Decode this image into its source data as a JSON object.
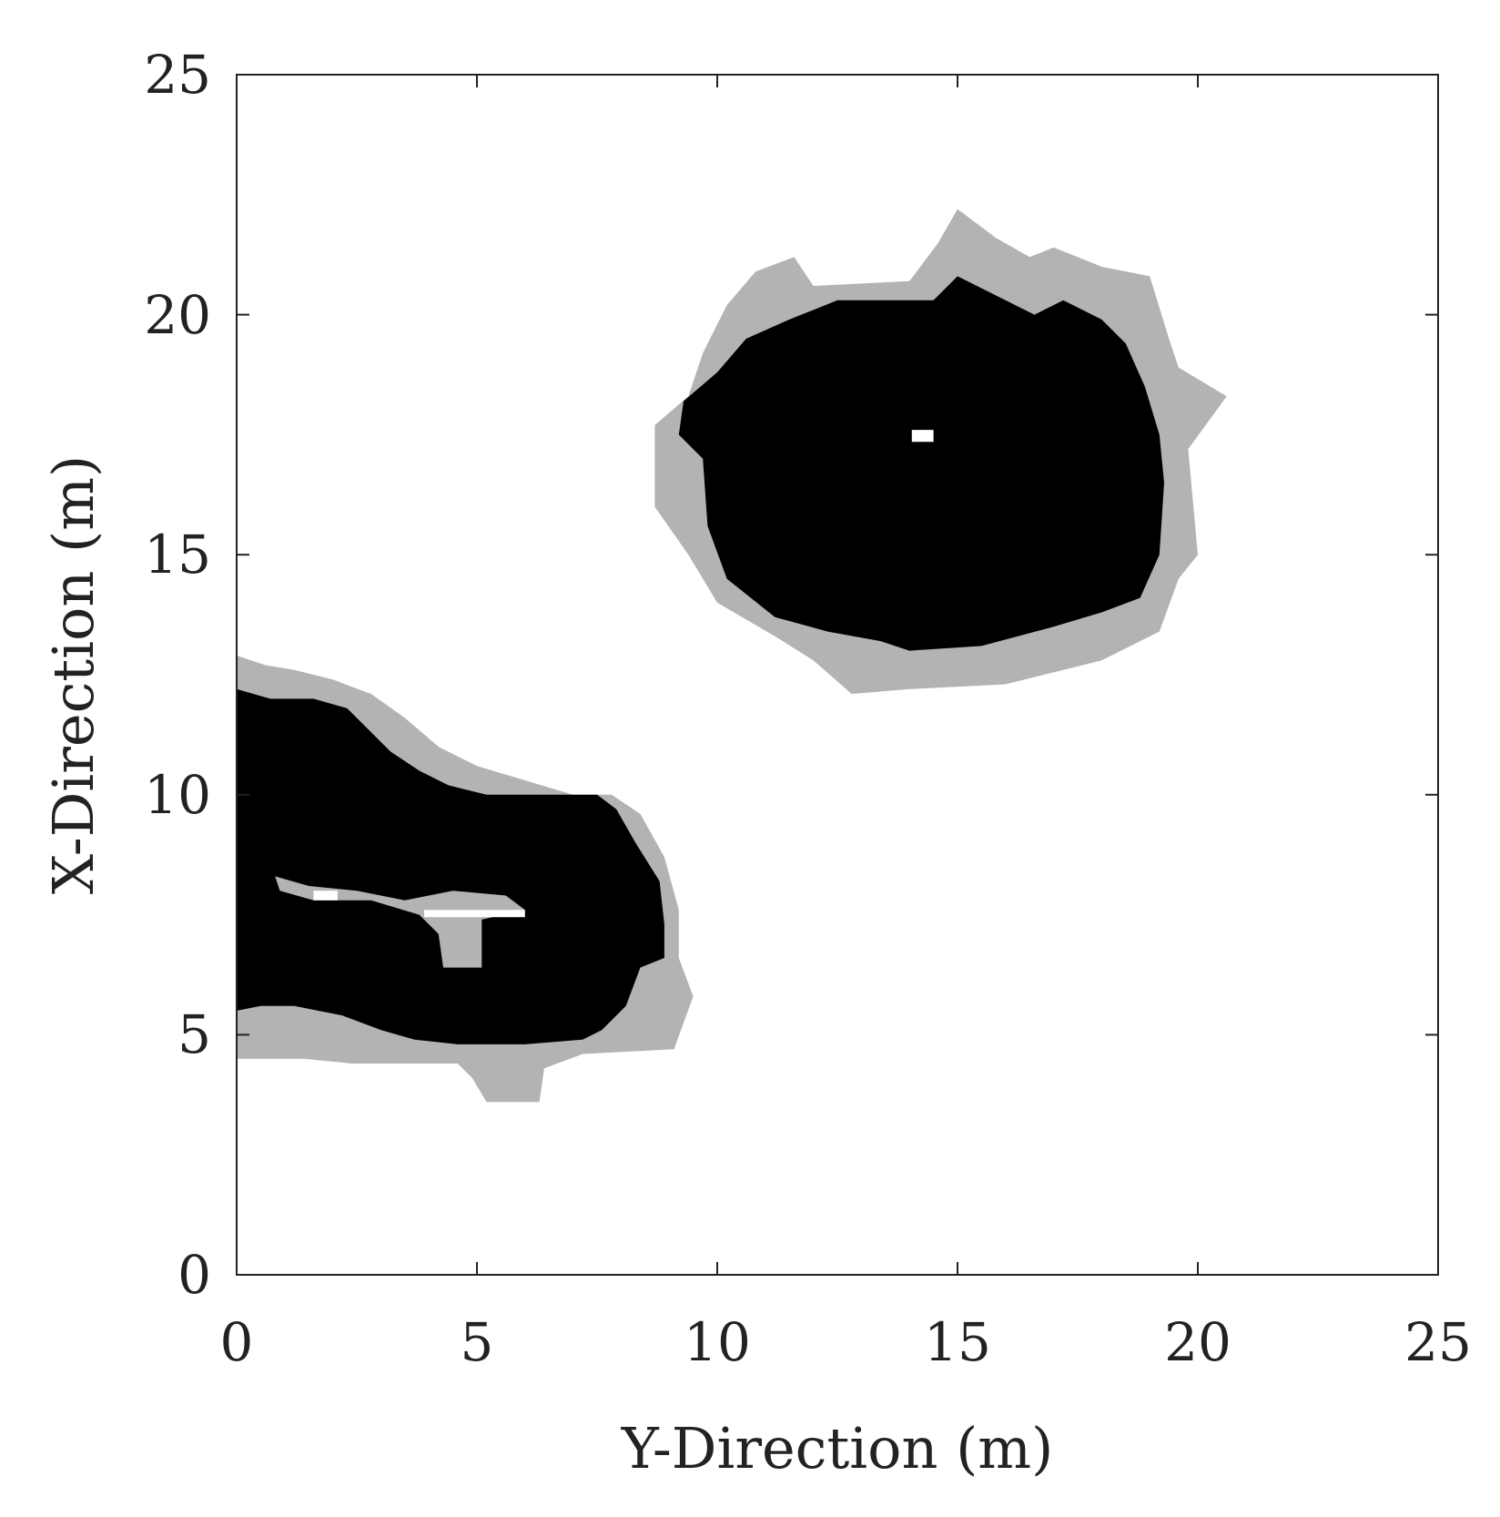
{
  "chart_data": {
    "type": "heatmap",
    "title": "",
    "xlabel": "Y-Direction (m)",
    "ylabel": "X-Direction (m)",
    "xlim": [
      0,
      25
    ],
    "ylim": [
      0,
      25
    ],
    "xticks": [
      0,
      5,
      10,
      15,
      20,
      25
    ],
    "yticks": [
      0,
      5,
      10,
      15,
      20,
      25
    ],
    "xtick_labels": [
      "0",
      "5",
      "10",
      "15",
      "20",
      "25"
    ],
    "ytick_labels": [
      "0",
      "5",
      "10",
      "15",
      "20",
      "25"
    ],
    "grid": false,
    "cell_size_m": 0.25,
    "value_meaning_note_in_colors": true,
    "colors": {
      "occupied": "#000000",
      "uncertain": "#b3b3b3",
      "free": "#ffffff",
      "axis": "#222222"
    },
    "regions": [
      {
        "level": "uncertain",
        "polygon": [
          [
            14.0,
            12.2
          ],
          [
            16.0,
            12.3
          ],
          [
            18.0,
            12.8
          ],
          [
            19.2,
            13.4
          ],
          [
            19.6,
            14.5
          ],
          [
            20.0,
            15.0
          ],
          [
            19.8,
            17.2
          ],
          [
            20.6,
            18.3
          ],
          [
            19.6,
            18.9
          ],
          [
            19.4,
            19.5
          ],
          [
            19.0,
            20.8
          ],
          [
            18.0,
            21.0
          ],
          [
            17.0,
            21.4
          ],
          [
            16.5,
            21.2
          ],
          [
            15.8,
            21.6
          ],
          [
            15.0,
            22.2
          ],
          [
            14.6,
            21.5
          ],
          [
            14.0,
            20.7
          ],
          [
            12.0,
            20.6
          ],
          [
            11.6,
            21.2
          ],
          [
            10.8,
            20.9
          ],
          [
            10.2,
            20.2
          ],
          [
            9.7,
            19.2
          ],
          [
            9.4,
            18.3
          ],
          [
            8.7,
            17.7
          ],
          [
            8.7,
            16.0
          ],
          [
            9.4,
            15.0
          ],
          [
            10.0,
            14.0
          ],
          [
            11.2,
            13.3
          ],
          [
            12.0,
            12.8
          ],
          [
            12.8,
            12.1
          ]
        ]
      },
      {
        "level": "occupied",
        "polygon": [
          [
            14.0,
            13.0
          ],
          [
            15.5,
            13.1
          ],
          [
            17.0,
            13.5
          ],
          [
            18.0,
            13.8
          ],
          [
            18.8,
            14.1
          ],
          [
            19.2,
            15.0
          ],
          [
            19.3,
            16.5
          ],
          [
            19.2,
            17.5
          ],
          [
            18.9,
            18.5
          ],
          [
            18.5,
            19.4
          ],
          [
            18.0,
            19.9
          ],
          [
            17.2,
            20.3
          ],
          [
            16.6,
            20.0
          ],
          [
            16.0,
            20.3
          ],
          [
            15.0,
            20.8
          ],
          [
            14.5,
            20.3
          ],
          [
            12.5,
            20.3
          ],
          [
            11.5,
            19.9
          ],
          [
            10.6,
            19.5
          ],
          [
            10.0,
            18.8
          ],
          [
            9.3,
            18.2
          ],
          [
            9.2,
            17.5
          ],
          [
            9.7,
            17.0
          ],
          [
            9.8,
            15.6
          ],
          [
            10.2,
            14.5
          ],
          [
            11.2,
            13.7
          ],
          [
            12.3,
            13.4
          ],
          [
            13.4,
            13.2
          ]
        ]
      },
      {
        "level": "free",
        "polygon": [
          [
            14.05,
            17.35
          ],
          [
            14.5,
            17.35
          ],
          [
            14.5,
            17.6
          ],
          [
            14.05,
            17.6
          ]
        ]
      },
      {
        "level": "uncertain",
        "polygon": [
          [
            0.0,
            4.5
          ],
          [
            0.0,
            12.9
          ],
          [
            0.6,
            12.7
          ],
          [
            1.2,
            12.6
          ],
          [
            2.0,
            12.4
          ],
          [
            2.8,
            12.1
          ],
          [
            3.5,
            11.6
          ],
          [
            4.2,
            11.0
          ],
          [
            5.0,
            10.6
          ],
          [
            6.0,
            10.3
          ],
          [
            7.0,
            10.0
          ],
          [
            7.8,
            10.0
          ],
          [
            8.4,
            9.6
          ],
          [
            8.9,
            8.7
          ],
          [
            9.2,
            7.6
          ],
          [
            9.2,
            6.6
          ],
          [
            9.5,
            5.8
          ],
          [
            9.1,
            4.7
          ],
          [
            7.2,
            4.6
          ],
          [
            6.4,
            4.3
          ],
          [
            6.3,
            3.6
          ],
          [
            5.2,
            3.6
          ],
          [
            4.9,
            4.1
          ],
          [
            4.6,
            4.4
          ],
          [
            2.4,
            4.4
          ],
          [
            1.4,
            4.5
          ]
        ]
      },
      {
        "level": "occupied",
        "polygon": [
          [
            0.0,
            5.5
          ],
          [
            0.0,
            12.2
          ],
          [
            0.7,
            12.0
          ],
          [
            1.6,
            12.0
          ],
          [
            2.3,
            11.8
          ],
          [
            2.7,
            11.4
          ],
          [
            3.2,
            10.9
          ],
          [
            3.8,
            10.5
          ],
          [
            4.4,
            10.2
          ],
          [
            5.2,
            10.0
          ],
          [
            6.5,
            10.0
          ],
          [
            7.5,
            10.0
          ],
          [
            7.9,
            9.7
          ],
          [
            8.3,
            9.0
          ],
          [
            8.8,
            8.2
          ],
          [
            8.9,
            7.3
          ],
          [
            8.9,
            6.6
          ],
          [
            8.4,
            6.4
          ],
          [
            8.1,
            5.6
          ],
          [
            7.6,
            5.1
          ],
          [
            7.2,
            4.9
          ],
          [
            6.0,
            4.8
          ],
          [
            4.6,
            4.8
          ],
          [
            3.7,
            4.9
          ],
          [
            3.0,
            5.1
          ],
          [
            2.2,
            5.4
          ],
          [
            1.2,
            5.6
          ],
          [
            0.5,
            5.6
          ]
        ]
      },
      {
        "level": "uncertain",
        "polygon": [
          [
            0.8,
            8.3
          ],
          [
            1.5,
            8.1
          ],
          [
            2.5,
            8.0
          ],
          [
            3.5,
            7.8
          ],
          [
            4.5,
            8.0
          ],
          [
            5.6,
            7.9
          ],
          [
            6.0,
            7.6
          ],
          [
            5.1,
            7.4
          ],
          [
            5.1,
            6.4
          ],
          [
            4.3,
            6.4
          ],
          [
            4.2,
            7.1
          ],
          [
            3.8,
            7.5
          ],
          [
            2.8,
            7.8
          ],
          [
            1.6,
            7.8
          ],
          [
            0.9,
            8.0
          ]
        ]
      },
      {
        "level": "free",
        "polygon": [
          [
            1.6,
            8.0
          ],
          [
            2.1,
            8.0
          ],
          [
            2.1,
            7.8
          ],
          [
            1.6,
            7.8
          ]
        ]
      },
      {
        "level": "free",
        "polygon": [
          [
            3.9,
            7.6
          ],
          [
            6.0,
            7.6
          ],
          [
            6.0,
            7.45
          ],
          [
            3.9,
            7.45
          ]
        ]
      }
    ]
  }
}
